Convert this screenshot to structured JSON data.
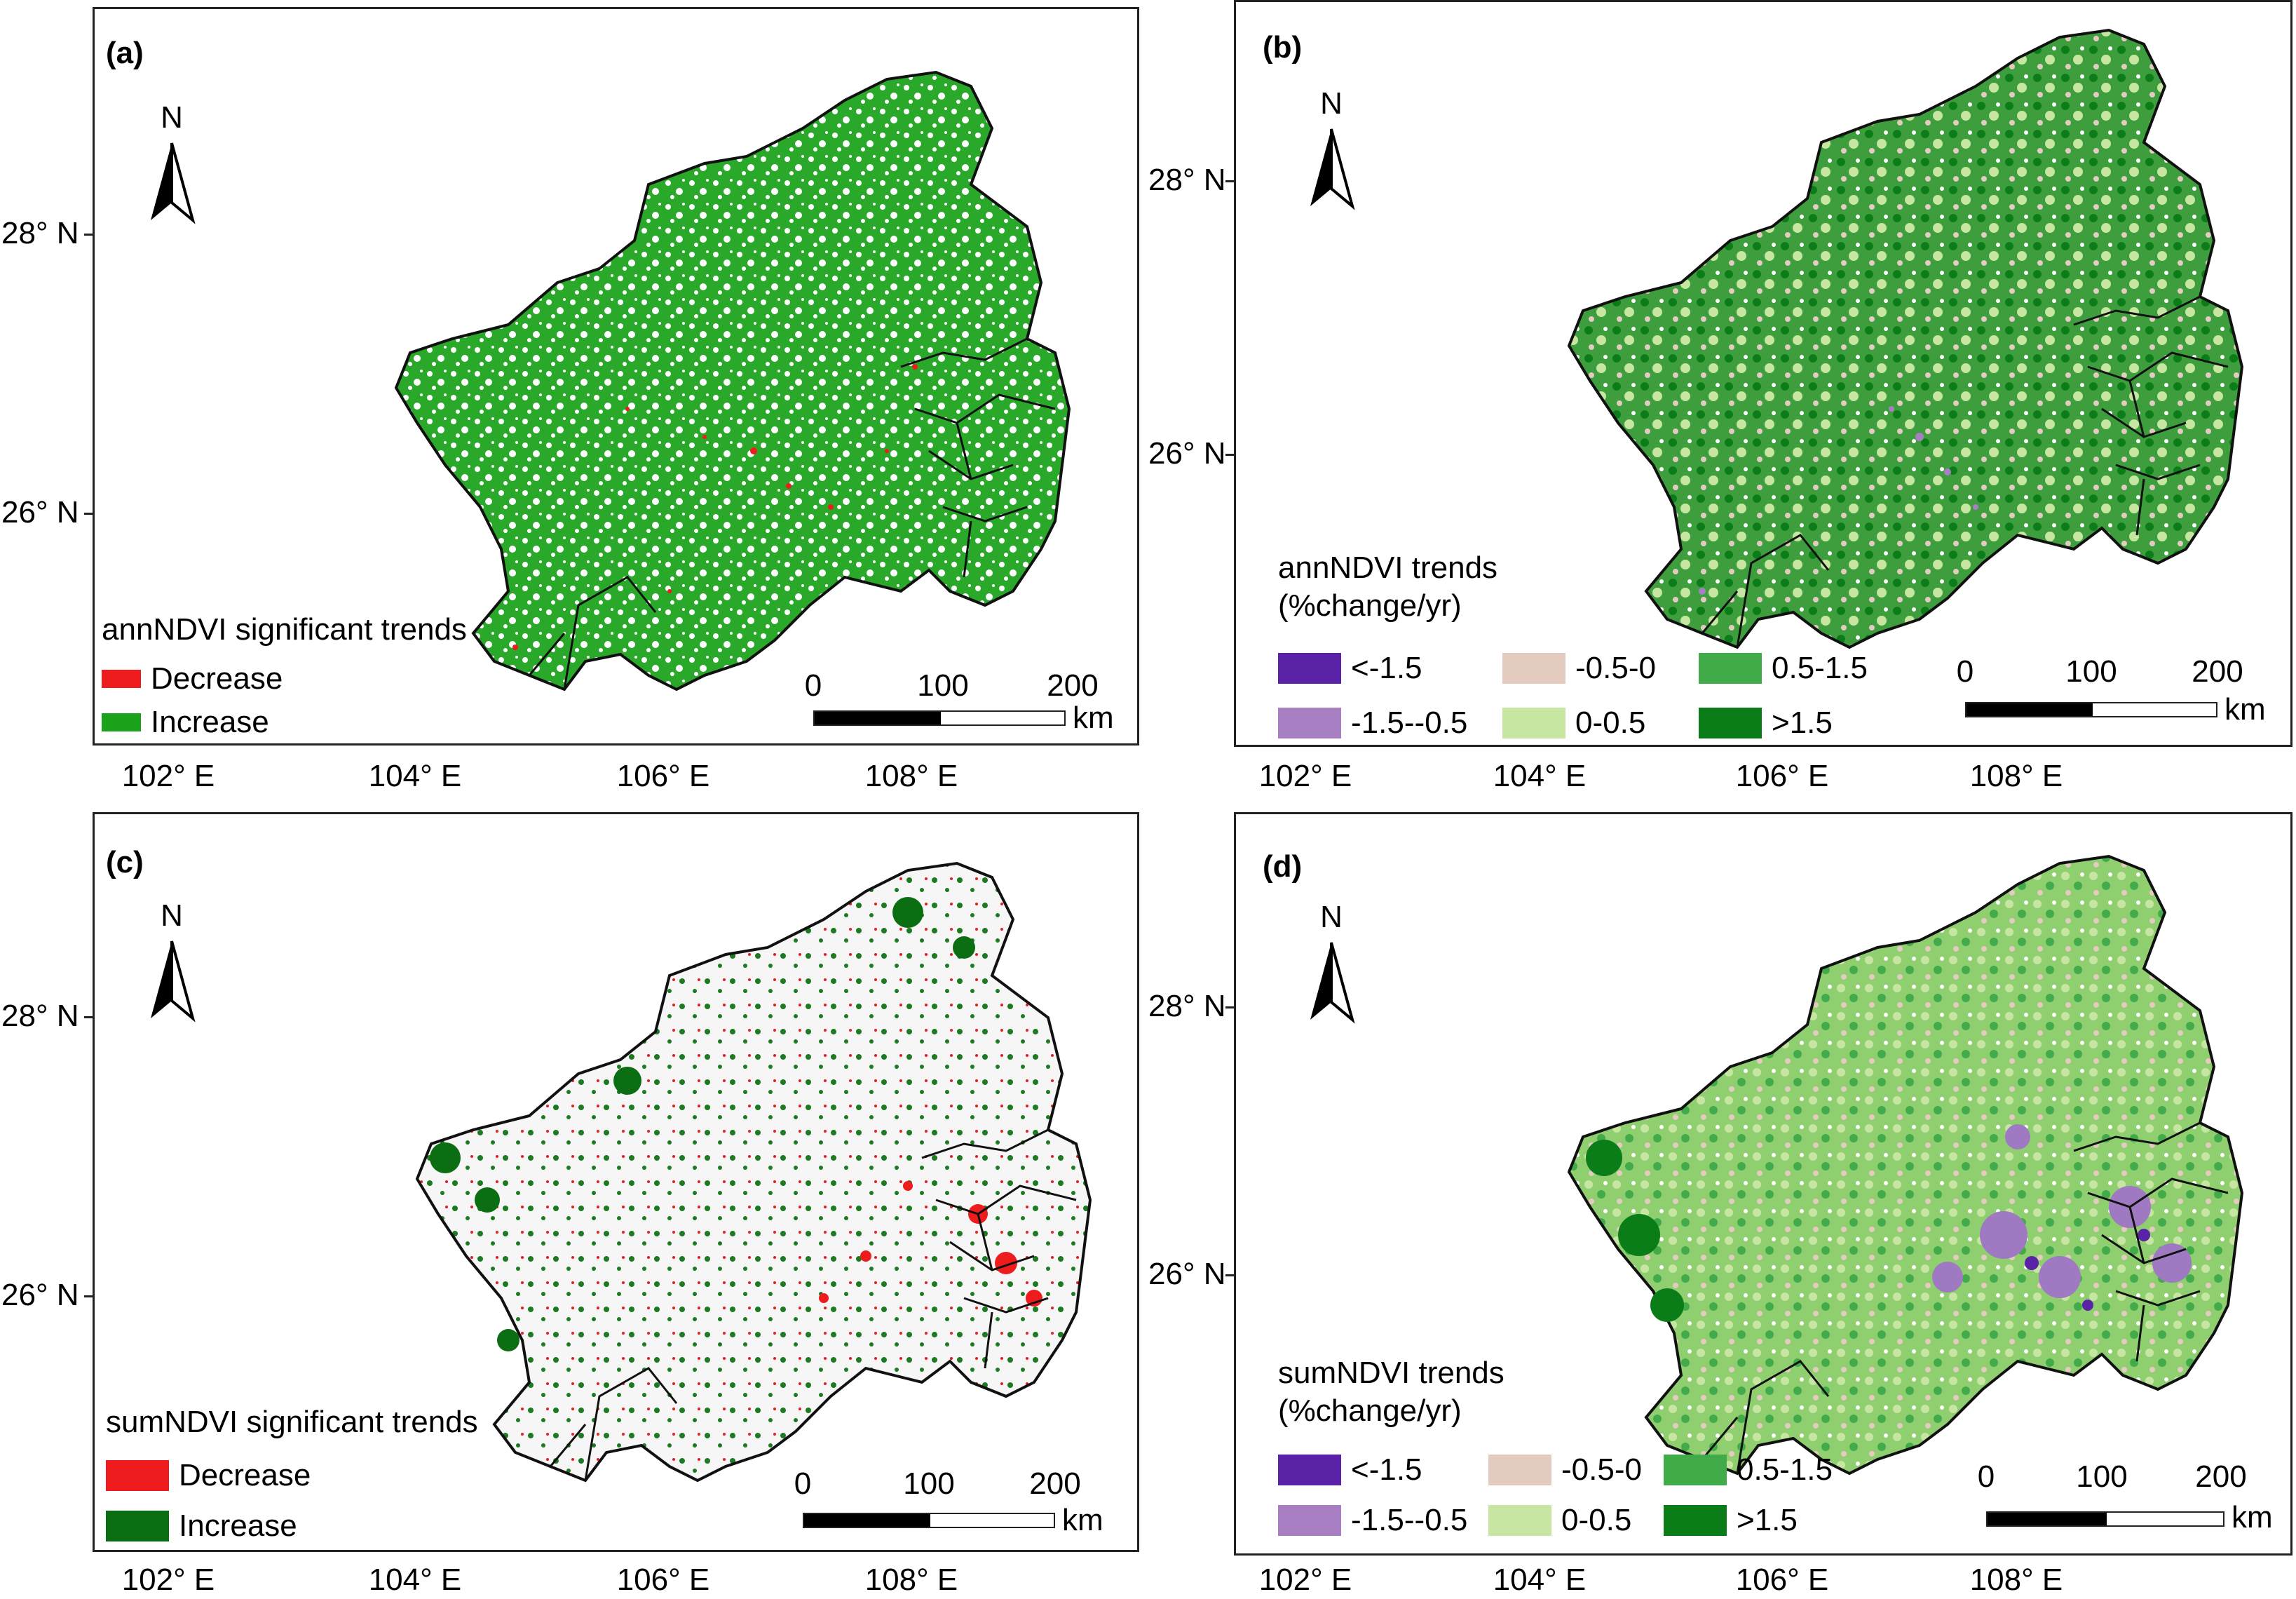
{
  "panels": [
    {
      "label": "(a)",
      "lat_labels": [
        "28° N",
        "26° N"
      ],
      "lon_labels": [
        "102° E",
        "104° E",
        "106° E",
        "108° E"
      ],
      "north": "N",
      "legend_title": "annNDVI significant trends",
      "legend": [
        {
          "label": "Decrease",
          "color": "#ee1c1c"
        },
        {
          "label": "Increase",
          "color": "#1aa31a"
        }
      ],
      "scale": {
        "ticks": [
          "0",
          "100",
          "200"
        ],
        "unit": "km"
      },
      "map_fill": "#2aa82a",
      "speckle": "#ee1c1c"
    },
    {
      "label": "(b)",
      "lat_labels": [
        "28° N",
        "26° N"
      ],
      "lon_labels": [
        "102° E",
        "104° E",
        "106° E",
        "108° E"
      ],
      "north": "N",
      "legend_title": "annNDVI trends (%change/yr)",
      "legend_title_lines": [
        "annNDVI trends",
        "(%change/yr)"
      ],
      "legend": [
        {
          "label": "<-1.5",
          "color": "#5a22a6"
        },
        {
          "label": "-1.5--0.5",
          "color": "#a97fc4"
        },
        {
          "label": "-0.5-0",
          "color": "#e3cbbf"
        },
        {
          "label": "0-0.5",
          "color": "#c6e6a2"
        },
        {
          "label": "0.5-1.5",
          "color": "#41ab4a"
        },
        {
          "label": ">1.5",
          "color": "#0b7d18"
        }
      ],
      "scale": {
        "ticks": [
          "0",
          "100",
          "200"
        ],
        "unit": "km"
      },
      "map_fill": "#3e9e3e",
      "speckle": "#c6e6a2"
    },
    {
      "label": "(c)",
      "lat_labels": [
        "28° N",
        "26° N"
      ],
      "lon_labels": [
        "102° E",
        "104° E",
        "106° E",
        "108° E"
      ],
      "north": "N",
      "legend_title": "sumNDVI significant trends",
      "legend": [
        {
          "label": "Decrease",
          "color": "#ee1c1c"
        },
        {
          "label": "Increase",
          "color": "#0b6e12"
        }
      ],
      "scale": {
        "ticks": [
          "0",
          "100",
          "200"
        ],
        "unit": "km"
      },
      "map_fill": "#f6f6f6",
      "speckle": "#1b7a22"
    },
    {
      "label": "(d)",
      "lat_labels": [
        "28° N",
        "26° N"
      ],
      "lon_labels": [
        "102° E",
        "104° E",
        "106° E",
        "108° E"
      ],
      "north": "N",
      "legend_title": "sumNDVI trends (%change/yr)",
      "legend_title_lines": [
        "sumNDVI trends",
        "(%change/yr)"
      ],
      "legend": [
        {
          "label": "<-1.5",
          "color": "#5a22a6"
        },
        {
          "label": "-1.5--0.5",
          "color": "#a97fc4"
        },
        {
          "label": "-0.5-0",
          "color": "#e3cbbf"
        },
        {
          "label": "0-0.5",
          "color": "#c6e6a2"
        },
        {
          "label": "0.5-1.5",
          "color": "#41ab4a"
        },
        {
          "label": ">1.5",
          "color": "#0b7d18"
        }
      ],
      "scale": {
        "ticks": [
          "0",
          "100",
          "200"
        ],
        "unit": "km"
      },
      "map_fill": "#8fcf70",
      "speckle": "#9f79c2"
    }
  ]
}
